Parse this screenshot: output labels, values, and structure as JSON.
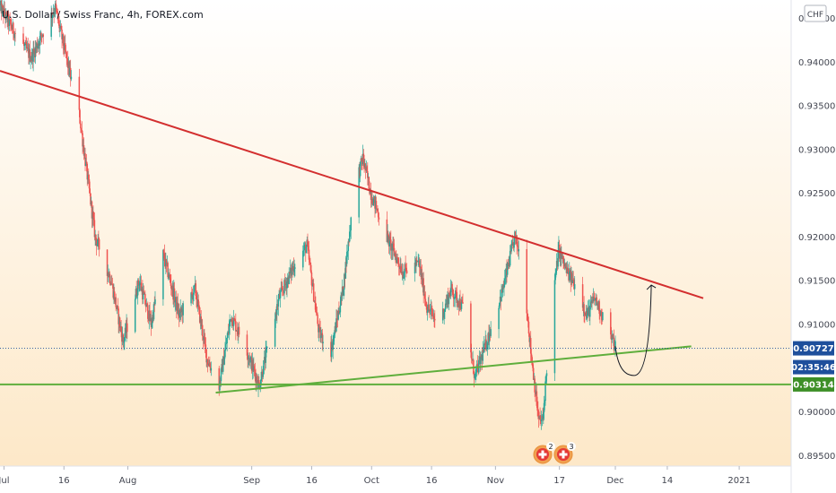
{
  "header": {
    "title": "U.S. Dollar / Swiss Franc, 4h, FOREX.com"
  },
  "currency_button": {
    "label": "CHF"
  },
  "price_tags": {
    "last_price": "0.90727",
    "countdown": "02:35:46",
    "support_price": "0.90314"
  },
  "event_badges": [
    {
      "flag_name": "swiss-flag-icon",
      "count": "2"
    },
    {
      "flag_name": "swiss-flag-icon",
      "count": "3"
    }
  ],
  "colors": {
    "background_top": "#ffffff",
    "background_bottom": "#fde8c8",
    "up_candle": "#26a69a",
    "down_candle": "#ef5350",
    "resistance_line": "#d32f2f",
    "support_line": "#5fae3c",
    "tag_blue": "#1e4f9c",
    "tag_green": "#3d8f27",
    "arrow": "#131722"
  },
  "chart_data": {
    "type": "candlestick",
    "title": "U.S. Dollar / Swiss Franc, 4h, FOREX.com",
    "y_axis_position": "right",
    "ylim": [
      0.8938,
      0.9471
    ],
    "y_ticks": [
      "0.94500",
      "0.94000",
      "0.93500",
      "0.93000",
      "0.92500",
      "0.92000",
      "0.91500",
      "0.91000",
      "0.90000",
      "0.89500"
    ],
    "x_ticks": [
      "Jul",
      "16",
      "Aug",
      "Sep",
      "16",
      "Oct",
      "16",
      "Nov",
      "17",
      "Dec",
      "14",
      "2021"
    ],
    "x_tick_dates": [
      "2020-07-01",
      "2020-07-16",
      "2020-08-01",
      "2020-09-01",
      "2020-09-16",
      "2020-10-01",
      "2020-10-16",
      "2020-11-01",
      "2020-11-17",
      "2020-12-01",
      "2020-12-14",
      "2021-01-01"
    ],
    "x_range_dates": [
      "2020-06-30",
      "2021-01-14"
    ],
    "price_path": [
      [
        "2020-06-30",
        0.9465
      ],
      [
        "2020-07-03",
        0.944
      ],
      [
        "2020-07-08",
        0.9405
      ],
      [
        "2020-07-12",
        0.9445
      ],
      [
        "2020-07-14",
        0.9462
      ],
      [
        "2020-07-17",
        0.94
      ],
      [
        "2020-07-20",
        0.934
      ],
      [
        "2020-07-24",
        0.92
      ],
      [
        "2020-07-28",
        0.915
      ],
      [
        "2020-07-31",
        0.908
      ],
      [
        "2020-08-04",
        0.915
      ],
      [
        "2020-08-07",
        0.91
      ],
      [
        "2020-08-10",
        0.918
      ],
      [
        "2020-08-14",
        0.911
      ],
      [
        "2020-08-18",
        0.914
      ],
      [
        "2020-08-21",
        0.906
      ],
      [
        "2020-08-24",
        0.903
      ],
      [
        "2020-08-27",
        0.911
      ],
      [
        "2020-08-31",
        0.907
      ],
      [
        "2020-09-03",
        0.903
      ],
      [
        "2020-09-08",
        0.913
      ],
      [
        "2020-09-12",
        0.917
      ],
      [
        "2020-09-15",
        0.919
      ],
      [
        "2020-09-18",
        0.909
      ],
      [
        "2020-09-21",
        0.907
      ],
      [
        "2020-09-24",
        0.914
      ],
      [
        "2020-09-27",
        0.926
      ],
      [
        "2020-09-29",
        0.929
      ],
      [
        "2020-10-01",
        0.925
      ],
      [
        "2020-10-05",
        0.92
      ],
      [
        "2020-10-09",
        0.916
      ],
      [
        "2020-10-13",
        0.917
      ],
      [
        "2020-10-15",
        0.912
      ],
      [
        "2020-10-18",
        0.91
      ],
      [
        "2020-10-21",
        0.914
      ],
      [
        "2020-10-24",
        0.912
      ],
      [
        "2020-10-27",
        0.904
      ],
      [
        "2020-10-30",
        0.908
      ],
      [
        "2020-11-03",
        0.914
      ],
      [
        "2020-11-06",
        0.92
      ],
      [
        "2020-11-08",
        0.917
      ],
      [
        "2020-11-10",
        0.907
      ],
      [
        "2020-11-12",
        0.899
      ],
      [
        "2020-11-13",
        0.899
      ],
      [
        "2020-11-15",
        0.911
      ],
      [
        "2020-11-17",
        0.9185
      ],
      [
        "2020-11-19",
        0.916
      ],
      [
        "2020-11-22",
        0.914
      ],
      [
        "2020-11-24",
        0.911
      ],
      [
        "2020-11-26",
        0.913
      ],
      [
        "2020-11-28",
        0.911
      ],
      [
        "2020-12-01",
        0.9075
      ]
    ],
    "annotations": {
      "resistance_line": {
        "from": [
          "2020-06-30",
          0.939
        ],
        "to": [
          "2020-12-23",
          0.913
        ]
      },
      "support_trendline": {
        "from": [
          "2020-08-23",
          0.9022
        ],
        "to": [
          "2020-12-20",
          0.9075
        ]
      },
      "horizontal_support": {
        "price": 0.90314
      },
      "last_price_line": {
        "price": 0.90727
      },
      "projection_arrow": {
        "from": [
          "2020-12-01",
          0.9075
        ],
        "via": [
          "2020-12-06",
          0.905
        ],
        "to": [
          "2020-12-10",
          0.9145
        ]
      }
    }
  }
}
